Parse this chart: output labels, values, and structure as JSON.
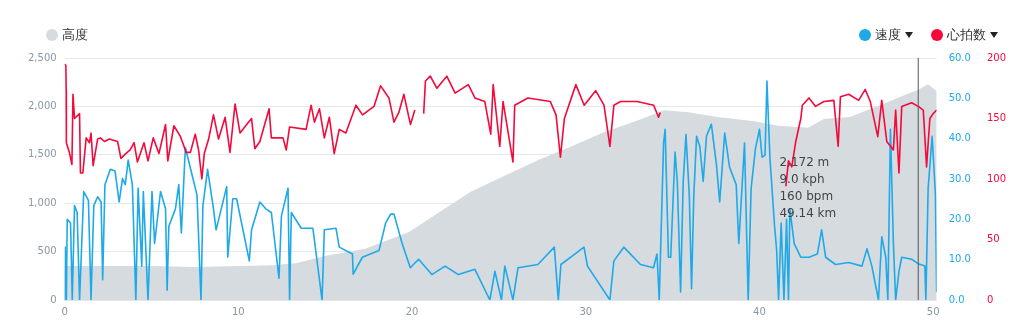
{
  "chart_data": {
    "type": "line",
    "xlim": [
      0,
      50.2
    ],
    "xticks": [
      0,
      10,
      20,
      30,
      40,
      50
    ],
    "ylim": [
      0,
      2500
    ],
    "yticks": [
      {
        "value": 0,
        "label": "0"
      },
      {
        "value": 500,
        "label": "500"
      },
      {
        "value": 1000,
        "label": "1,000"
      },
      {
        "value": 1500,
        "label": "1,500"
      },
      {
        "value": 2000,
        "label": "2,000"
      },
      {
        "value": 2500,
        "label": "2,500"
      }
    ],
    "y2lim": [
      0,
      60
    ],
    "y2ticks": [
      {
        "value": 0,
        "label": "0.0"
      },
      {
        "value": 10,
        "label": "10.0"
      },
      {
        "value": 20,
        "label": "20.0"
      },
      {
        "value": 30,
        "label": "30.0"
      },
      {
        "value": 40,
        "label": "40.0"
      },
      {
        "value": 50,
        "label": "50.0"
      },
      {
        "value": 60,
        "label": "60.0"
      }
    ],
    "y3lim": [
      0,
      200
    ],
    "y3ticks": [
      0,
      50,
      100,
      150,
      200
    ],
    "grid": "y",
    "legend": "top",
    "ref_lines": [
      {
        "axis": "x",
        "value": 49.14,
        "color": "#555555"
      }
    ],
    "annotations": [
      "2,172 m",
      "9.0 kph",
      "160 bpm",
      "49.14 km"
    ],
    "series": [
      {
        "name": "高度",
        "type": "area",
        "color": "#d6dbdf",
        "x": [
          0,
          2,
          5,
          7.5,
          10,
          12,
          13.3,
          14.86,
          17.3,
          19.8,
          21.5,
          23.4,
          25.3,
          27.2,
          29.1,
          31,
          32.9,
          34.5,
          35.9,
          37.6,
          39.6,
          41.1,
          42.8,
          43.7,
          45.2,
          46.9,
          48.4,
          49.14,
          49.7,
          50.2
        ],
        "values": [
          350,
          350,
          350,
          340,
          350,
          360,
          380,
          450,
          530,
          700,
          900,
          1120,
          1280,
          1440,
          1580,
          1730,
          1850,
          1960,
          1940,
          1890,
          1850,
          1800,
          1780,
          1870,
          1890,
          2010,
          2120,
          2172,
          2230,
          2160
        ]
      },
      {
        "name": "速度",
        "axis": "y2",
        "color": "#1ea9e9",
        "x": [
          0,
          0.03,
          0.1,
          0.15,
          0.34,
          0.44,
          0.57,
          0.72,
          0.86,
          1.1,
          1.37,
          1.52,
          1.68,
          1.9,
          2.1,
          2.19,
          2.32,
          2.63,
          2.9,
          3.14,
          3.33,
          3.49,
          3.66,
          3.9,
          4.1,
          4.23,
          4.44,
          4.53,
          4.8,
          5.03,
          5.18,
          5.52,
          5.81,
          5.9,
          6,
          6.38,
          6.57,
          6.72,
          6.95,
          7.33,
          7.62,
          7.85,
          7.96,
          8.23,
          8.57,
          8.72,
          9.33,
          9.39,
          9.68,
          9.9,
          10.63,
          10.76,
          11.24,
          11.58,
          11.9,
          12.34,
          12.48,
          12.86,
          12.95,
          13.05,
          13.62,
          14.29,
          14.82,
          14.95,
          15.62,
          15.81,
          16.57,
          16.61,
          17.14,
          18.1,
          18.48,
          18.77,
          18.96,
          19.43,
          19.9,
          20.38,
          21.14,
          21.9,
          22.67,
          23.62,
          24.48,
          24.77,
          25.15,
          25.34,
          25.81,
          26.1,
          27.24,
          28.19,
          28.42,
          28.57,
          29.9,
          30.1,
          31.39,
          31.62,
          32.19,
          33.15,
          33.9,
          34.1,
          34.23,
          34.48,
          34.57,
          34.76,
          34.89,
          35.14,
          35.27,
          35.46,
          35.61,
          35.77,
          35.96,
          36.09,
          36.22,
          36.38,
          36.57,
          36.76,
          36.95,
          37.23,
          37.52,
          37.71,
          38,
          38.28,
          38.66,
          38.81,
          39.14,
          39.35,
          39.52,
          39.77,
          40,
          40.15,
          40.32,
          40.43,
          40.6,
          40.87,
          40.99,
          41.1,
          41.25,
          41.41,
          41.56,
          41.67,
          41.75,
          42,
          42.38,
          42.85,
          43.33,
          43.58,
          43.81,
          44.38,
          45.14,
          45.9,
          46.19,
          46.47,
          46.85,
          47.04,
          47.27,
          47.39,
          47.54,
          47.71,
          47.84,
          48.03,
          48.19,
          48.76,
          49.14,
          49.52,
          49.58,
          49.71,
          49.94,
          50.13,
          50.2
        ],
        "values": [
          0,
          13.1,
          0,
          20,
          19.1,
          0,
          23.4,
          21.7,
          0,
          26.9,
          24.7,
          0,
          23.4,
          25.6,
          24.3,
          5,
          28.6,
          32.4,
          32,
          24.3,
          30.1,
          28.6,
          34.7,
          28.6,
          0,
          27.7,
          8.4,
          26.9,
          0,
          26.9,
          14,
          26.9,
          22.6,
          2.4,
          18.3,
          22.6,
          28.6,
          16.6,
          37.8,
          31.1,
          26,
          0,
          23.4,
          32.4,
          22.6,
          17.4,
          28.1,
          10.6,
          25.1,
          25.1,
          9.7,
          17.4,
          24.3,
          22.6,
          21.7,
          5.4,
          20.8,
          27.7,
          0,
          21.7,
          17.8,
          17.8,
          0,
          17.4,
          17.8,
          13.1,
          11.4,
          6.4,
          10.6,
          12.3,
          19.1,
          21.3,
          21.3,
          14,
          8,
          10.1,
          6.3,
          8.4,
          6.3,
          7.6,
          0,
          7.1,
          0,
          8.4,
          0,
          8,
          8.8,
          13.1,
          0,
          8.8,
          13.1,
          8.4,
          0,
          9.7,
          13.1,
          8.8,
          8,
          11.4,
          0,
          38.9,
          42.3,
          10.6,
          10.6,
          36.7,
          29.4,
          2,
          29.4,
          41,
          26,
          2.8,
          26,
          40.6,
          38,
          29.4,
          40.6,
          43.6,
          33.7,
          24.3,
          41.4,
          32.9,
          28.6,
          14,
          38.9,
          0,
          27.7,
          37.6,
          42.3,
          35.4,
          35.9,
          54.3,
          35.4,
          18.3,
          12.3,
          0,
          19.1,
          0,
          20,
          0,
          22.6,
          14,
          10.6,
          10.6,
          11.4,
          17.4,
          10.6,
          8.8,
          9.3,
          8.4,
          12.7,
          8.4,
          0,
          15.7,
          10.6,
          0,
          42.3,
          14,
          0,
          7.1,
          10.6,
          10.1,
          9,
          8.4,
          0,
          27.7,
          40.6,
          26,
          2
        ]
      },
      {
        "name": "心拍数",
        "axis": "y3",
        "color": "#f5093b",
        "x": [
          0,
          0.07,
          0.09,
          0.1,
          0.29,
          0.42,
          0.48,
          0.57,
          0.86,
          0.91,
          1.05,
          1.24,
          1.43,
          1.52,
          1.64,
          1.9,
          2.06,
          2.29,
          2.57,
          3.05,
          3.24,
          3.52,
          3.77,
          4,
          4.19,
          4.57,
          4.8,
          5.1,
          5.43,
          5.81,
          5.94,
          6.29,
          6.67,
          7,
          7.24,
          7.52,
          7.71,
          7.9,
          8.04,
          8.29,
          8.57,
          8.86,
          9.24,
          9.52,
          9.81,
          10.1,
          10.48,
          10.76,
          10.95,
          11.24,
          11.77,
          11.9,
          12.57,
          12.76,
          12.95,
          13.9,
          14.19,
          14.38,
          14.67,
          14.95,
          15.24,
          15.52,
          15.81,
          16.19,
          16.77,
          17.15,
          17.81,
          18.19,
          18.67,
          18.96,
          19.24,
          19.53,
          19.91,
          20.16,
          20.4,
          20.67,
          20.77,
          21.05,
          21.43,
          22,
          22.48,
          23.24,
          23.62,
          24.19,
          24.53,
          24.67,
          25.05,
          25.24,
          25.81,
          25.91,
          26.67,
          27.96,
          28.29,
          28.54,
          28.77,
          29.43,
          29.91,
          30.57,
          31.05,
          31.39,
          31.62,
          32,
          32.95,
          33.91,
          34.19,
          34.29,
          38,
          41.52,
          41.67,
          41.86,
          42.09,
          42.38,
          42.47,
          42.85,
          43.23,
          43.71,
          44.28,
          44.53,
          44.66,
          45.14,
          45.71,
          46.09,
          46.38,
          46.81,
          47.04,
          47.33,
          47.71,
          47.84,
          48.03,
          48.19,
          48.76,
          49.14,
          49.43,
          49.62,
          49.81,
          50,
          50.2
        ],
        "values": [
          195,
          194,
          173,
          130,
          121,
          112,
          170,
          150,
          154,
          105,
          105,
          134,
          130,
          138,
          111,
          133,
          134,
          131,
          133,
          131,
          117,
          121,
          124,
          130,
          114,
          130,
          115,
          134,
          121,
          145,
          115,
          144,
          135,
          122,
          122,
          137,
          124,
          100,
          121,
          133,
          153,
          133,
          151,
          122,
          162,
          138,
          145,
          150,
          125,
          131,
          158,
          134,
          134,
          124,
          143,
          141,
          161,
          147,
          158,
          134,
          151,
          121,
          141,
          138,
          161,
          153,
          160,
          177,
          167,
          147,
          155,
          170,
          145,
          157,
          null,
          154,
          181,
          185,
          175,
          185,
          171,
          178,
          167,
          164,
          137,
          178,
          127,
          164,
          114,
          161,
          167,
          164,
          153,
          118,
          150,
          178,
          161,
          173,
          161,
          127,
          161,
          164,
          164,
          161,
          151,
          155,
          null,
          94,
          115,
          110,
          131,
          150,
          161,
          167,
          160,
          164,
          165,
          127,
          168,
          170,
          165,
          174,
          164,
          135,
          165,
          131,
          124,
          157,
          105,
          160,
          163,
          160,
          157,
          110,
          150,
          154,
          157
        ]
      }
    ]
  }
}
